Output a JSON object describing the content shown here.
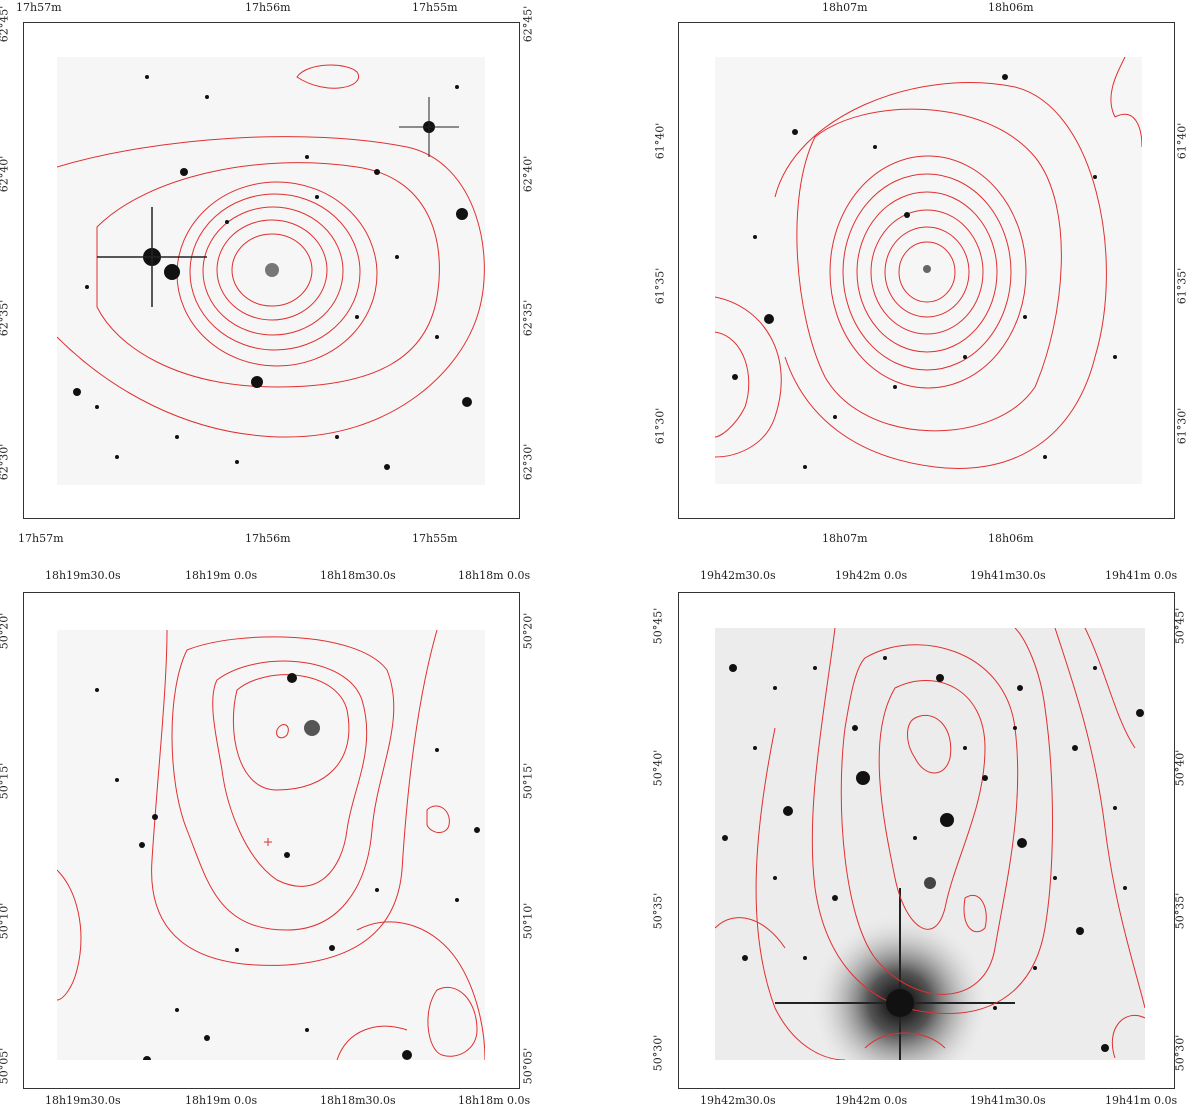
{
  "panels": [
    {
      "id": "p1",
      "ra_top": [
        "17h57m",
        "17h56m",
        "17h55m"
      ],
      "ra_bottom": [
        "17h57m",
        "17h56m",
        "17h55m"
      ],
      "dec_left": [
        "62°45'",
        "62°40'",
        "62°35'",
        "62°30'"
      ],
      "dec_right": [
        "62°45'",
        "62°40'",
        "62°35'",
        "62°30'"
      ]
    },
    {
      "id": "p2",
      "ra_top": [
        "18h07m",
        "18h06m"
      ],
      "ra_bottom": [
        "18h07m",
        "18h06m"
      ],
      "dec_left": [
        "61°40'",
        "61°35'",
        "61°30'"
      ],
      "dec_right": [
        "61°40'",
        "61°35'",
        "61°30'"
      ]
    },
    {
      "id": "p3",
      "ra_top": [
        "18h19m30.0s",
        "18h19m 0.0s",
        "18h18m30.0s",
        "18h18m 0.0s"
      ],
      "ra_bottom": [
        "18h19m30.0s",
        "18h19m 0.0s",
        "18h18m30.0s",
        "18h18m 0.0s"
      ],
      "dec_left": [
        "50°20'",
        "50°15'",
        "50°10'",
        "50°05'"
      ],
      "dec_right": [
        "50°20'",
        "50°15'",
        "50°10'",
        "50°05'"
      ]
    },
    {
      "id": "p4",
      "ra_top": [
        "19h42m30.0s",
        "19h42m 0.0s",
        "19h41m30.0s",
        "19h41m 0.0s"
      ],
      "ra_bottom": [
        "19h42m30.0s",
        "19h42m 0.0s",
        "19h41m30.0s",
        "19h41m 0.0s"
      ],
      "dec_left": [
        "50°45'",
        "50°40'",
        "50°35'",
        "50°30'"
      ],
      "dec_right": [
        "50°45'",
        "50°40'",
        "50°35'",
        "50°30'"
      ]
    }
  ],
  "colors": {
    "contour": "#e03030",
    "star": "#111111",
    "sky": "#f6f6f6"
  }
}
